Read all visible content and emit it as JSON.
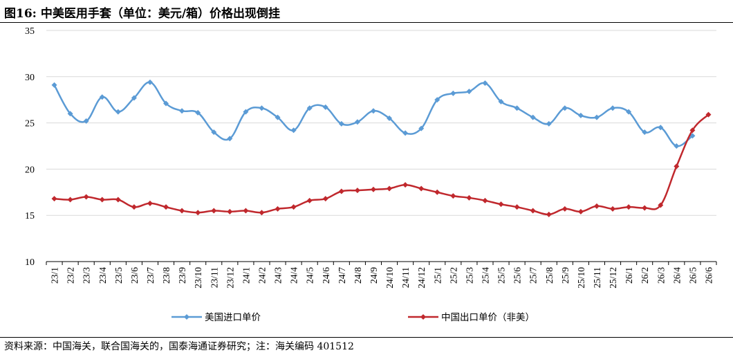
{
  "figure": {
    "title": "图16:  中美医用手套（单位：美元/箱）价格出现倒挂",
    "source": "资料来源：中国海关，联合国海关的，国泰海通证券研究；注：海关编码 401512"
  },
  "chart_data": {
    "type": "line",
    "title": "",
    "xlabel": "",
    "ylabel": "",
    "ylim": [
      10,
      35
    ],
    "yticks": [
      10,
      15,
      20,
      25,
      30,
      35
    ],
    "grid": true,
    "legend_position": "bottom",
    "categories": [
      "23/1",
      "23/2",
      "23/3",
      "23/4",
      "23/5",
      "23/6",
      "23/7",
      "23/8",
      "23/9",
      "23/10",
      "23/11",
      "23/12",
      "24/1",
      "24/2",
      "24/3",
      "24/4",
      "24/5",
      "24/6",
      "24/7",
      "24/8",
      "24/9",
      "24/10",
      "24/11",
      "24/12",
      "25/1",
      "25/2",
      "25/3",
      "25/4",
      "25/5",
      "25/6",
      "25/7",
      "25/8",
      "25/9",
      "25/10",
      "25/11",
      "25/12",
      "26/1",
      "26/2",
      "26/3",
      "26/4",
      "26/5",
      "26/6"
    ],
    "series": [
      {
        "name": "美国进口单价",
        "color": "#5B9BD5",
        "marker": "diamond",
        "values": [
          29.1,
          26.0,
          25.2,
          27.8,
          26.2,
          27.7,
          29.4,
          27.1,
          26.3,
          26.1,
          24.0,
          23.3,
          26.2,
          26.6,
          25.6,
          24.2,
          26.6,
          26.7,
          24.9,
          25.1,
          26.3,
          25.5,
          23.9,
          24.4,
          27.5,
          28.2,
          28.4,
          29.3,
          27.3,
          26.6,
          25.6,
          24.9,
          26.6,
          25.8,
          25.6,
          26.6,
          26.2,
          24.0,
          24.5,
          22.5,
          23.6,
          null
        ]
      },
      {
        "name": "中国出口单价（非美）",
        "color": "#C0282D",
        "marker": "diamond",
        "values": [
          16.8,
          16.7,
          17.0,
          16.7,
          16.7,
          15.9,
          16.3,
          15.9,
          15.5,
          15.3,
          15.5,
          15.4,
          15.5,
          15.3,
          15.7,
          15.9,
          16.6,
          16.8,
          17.6,
          17.7,
          17.8,
          17.9,
          18.3,
          17.9,
          17.5,
          17.1,
          16.9,
          16.6,
          16.2,
          15.9,
          15.5,
          15.1,
          15.7,
          15.4,
          16.0,
          15.7,
          15.9,
          15.8,
          16.1,
          20.3,
          24.2,
          25.9
        ]
      }
    ]
  }
}
